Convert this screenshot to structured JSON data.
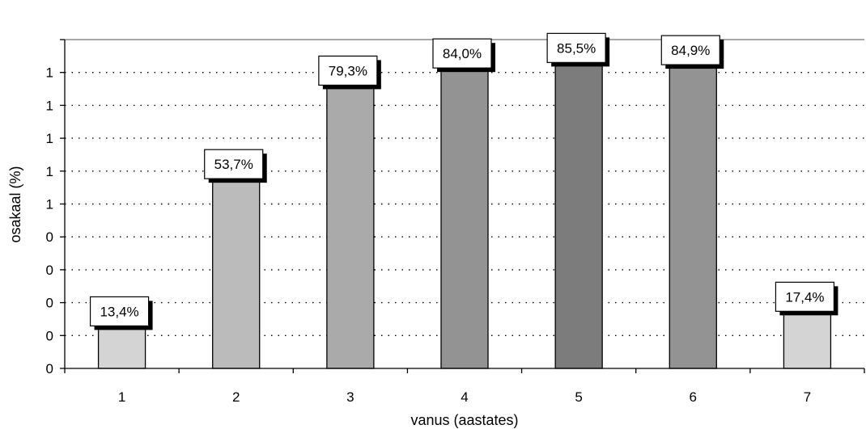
{
  "chart_data": {
    "type": "bar",
    "title": "",
    "xlabel": "vanus (aastates)",
    "ylabel": "osakaal (%)",
    "categories": [
      "1",
      "2",
      "3",
      "4",
      "5",
      "6",
      "7"
    ],
    "values": [
      13.4,
      53.7,
      79.3,
      84.0,
      85.5,
      84.9,
      17.4
    ],
    "data_labels": [
      "13,4%",
      "53,7%",
      "79,3%",
      "84,0%",
      "85,5%",
      "84,9%",
      "17,4%"
    ],
    "ylim": [
      0,
      90
    ],
    "yticks": [
      "0",
      "0",
      "0",
      "0",
      "0",
      "1",
      "1",
      "1",
      "1",
      "1"
    ],
    "grid": "dotted horizontal",
    "legend": "none",
    "bar_colors": [
      "#d4d4d4",
      "#bbbbbb",
      "#aaaaaa",
      "#939393",
      "#7c7c7c",
      "#939393",
      "#d4d4d4"
    ]
  }
}
